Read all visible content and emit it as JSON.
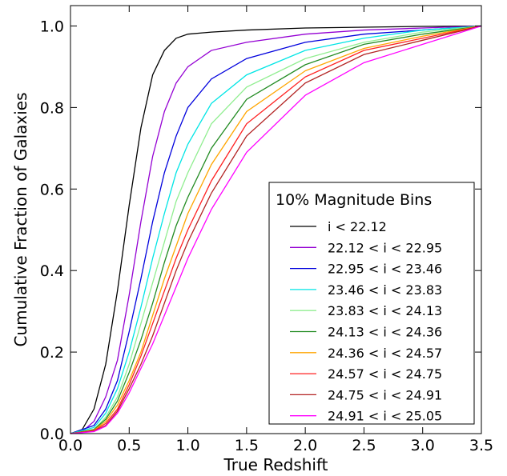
{
  "chart_data": {
    "type": "line",
    "title": "",
    "xlabel": "True Redshift",
    "ylabel": "Cumulative Fraction of Galaxies",
    "xlim": [
      0.0,
      3.5
    ],
    "ylim": [
      0.0,
      1.05
    ],
    "xticks": [
      "0.0",
      "0.5",
      "1.0",
      "1.5",
      "2.0",
      "2.5",
      "3.0",
      "3.5"
    ],
    "yticks": [
      "0.0",
      "0.2",
      "0.4",
      "0.6",
      "0.8",
      "1.0"
    ],
    "grid": false,
    "legend": {
      "title": "10% Magnitude Bins",
      "placement": "lower-right"
    },
    "series": [
      {
        "name": "i < 22.12",
        "color": "#000000",
        "points": [
          [
            0,
            0
          ],
          [
            0.1,
            0.01
          ],
          [
            0.2,
            0.06
          ],
          [
            0.3,
            0.17
          ],
          [
            0.4,
            0.35
          ],
          [
            0.5,
            0.56
          ],
          [
            0.6,
            0.75
          ],
          [
            0.7,
            0.88
          ],
          [
            0.8,
            0.94
          ],
          [
            0.9,
            0.97
          ],
          [
            1.0,
            0.98
          ],
          [
            1.2,
            0.985
          ],
          [
            1.5,
            0.99
          ],
          [
            2.0,
            0.995
          ],
          [
            2.5,
            0.997
          ],
          [
            3.0,
            0.999
          ],
          [
            3.5,
            1.0
          ]
        ]
      },
      {
        "name": "22.12 < i < 22.95",
        "color": "#9400d3",
        "points": [
          [
            0,
            0
          ],
          [
            0.1,
            0.005
          ],
          [
            0.2,
            0.03
          ],
          [
            0.3,
            0.09
          ],
          [
            0.4,
            0.18
          ],
          [
            0.5,
            0.34
          ],
          [
            0.6,
            0.52
          ],
          [
            0.7,
            0.68
          ],
          [
            0.8,
            0.79
          ],
          [
            0.9,
            0.86
          ],
          [
            1.0,
            0.9
          ],
          [
            1.2,
            0.94
          ],
          [
            1.5,
            0.96
          ],
          [
            2.0,
            0.98
          ],
          [
            2.5,
            0.99
          ],
          [
            3.0,
            0.995
          ],
          [
            3.5,
            1.0
          ]
        ]
      },
      {
        "name": "22.95 < i < 23.46",
        "color": "#0000dd",
        "points": [
          [
            0,
            0
          ],
          [
            0.2,
            0.02
          ],
          [
            0.3,
            0.06
          ],
          [
            0.4,
            0.13
          ],
          [
            0.5,
            0.25
          ],
          [
            0.6,
            0.38
          ],
          [
            0.7,
            0.52
          ],
          [
            0.8,
            0.64
          ],
          [
            0.9,
            0.73
          ],
          [
            1.0,
            0.8
          ],
          [
            1.2,
            0.87
          ],
          [
            1.5,
            0.92
          ],
          [
            2.0,
            0.96
          ],
          [
            2.5,
            0.98
          ],
          [
            3.0,
            0.99
          ],
          [
            3.5,
            1.0
          ]
        ]
      },
      {
        "name": "23.46 < i < 23.83",
        "color": "#00e5e5",
        "points": [
          [
            0,
            0
          ],
          [
            0.2,
            0.015
          ],
          [
            0.3,
            0.05
          ],
          [
            0.4,
            0.11
          ],
          [
            0.5,
            0.2
          ],
          [
            0.6,
            0.31
          ],
          [
            0.7,
            0.43
          ],
          [
            0.8,
            0.54
          ],
          [
            0.9,
            0.64
          ],
          [
            1.0,
            0.71
          ],
          [
            1.2,
            0.81
          ],
          [
            1.5,
            0.88
          ],
          [
            2.0,
            0.94
          ],
          [
            2.5,
            0.97
          ],
          [
            3.0,
            0.99
          ],
          [
            3.5,
            1.0
          ]
        ]
      },
      {
        "name": "23.83 < i < 24.13",
        "color": "#90ee90",
        "points": [
          [
            0,
            0
          ],
          [
            0.2,
            0.01
          ],
          [
            0.3,
            0.04
          ],
          [
            0.4,
            0.09
          ],
          [
            0.5,
            0.17
          ],
          [
            0.6,
            0.27
          ],
          [
            0.7,
            0.37
          ],
          [
            0.8,
            0.47
          ],
          [
            0.9,
            0.57
          ],
          [
            1.0,
            0.64
          ],
          [
            1.2,
            0.76
          ],
          [
            1.5,
            0.85
          ],
          [
            2.0,
            0.92
          ],
          [
            2.5,
            0.96
          ],
          [
            3.0,
            0.985
          ],
          [
            3.5,
            1.0
          ]
        ]
      },
      {
        "name": "24.13 < i < 24.36",
        "color": "#228b22",
        "points": [
          [
            0,
            0
          ],
          [
            0.2,
            0.01
          ],
          [
            0.3,
            0.035
          ],
          [
            0.4,
            0.08
          ],
          [
            0.5,
            0.15
          ],
          [
            0.6,
            0.23
          ],
          [
            0.7,
            0.32
          ],
          [
            0.8,
            0.42
          ],
          [
            0.9,
            0.51
          ],
          [
            1.0,
            0.58
          ],
          [
            1.2,
            0.7
          ],
          [
            1.5,
            0.82
          ],
          [
            2.0,
            0.905
          ],
          [
            2.5,
            0.955
          ],
          [
            3.0,
            0.98
          ],
          [
            3.5,
            1.0
          ]
        ]
      },
      {
        "name": "24.36 < i < 24.57",
        "color": "#ffa500",
        "points": [
          [
            0,
            0
          ],
          [
            0.2,
            0.008
          ],
          [
            0.3,
            0.03
          ],
          [
            0.4,
            0.07
          ],
          [
            0.5,
            0.13
          ],
          [
            0.6,
            0.2
          ],
          [
            0.7,
            0.29
          ],
          [
            0.8,
            0.38
          ],
          [
            0.9,
            0.46
          ],
          [
            1.0,
            0.54
          ],
          [
            1.2,
            0.66
          ],
          [
            1.5,
            0.79
          ],
          [
            2.0,
            0.89
          ],
          [
            2.5,
            0.945
          ],
          [
            3.0,
            0.975
          ],
          [
            3.5,
            1.0
          ]
        ]
      },
      {
        "name": "24.57 < i < 24.75",
        "color": "#ff2020",
        "points": [
          [
            0,
            0
          ],
          [
            0.2,
            0.007
          ],
          [
            0.3,
            0.025
          ],
          [
            0.4,
            0.06
          ],
          [
            0.5,
            0.12
          ],
          [
            0.6,
            0.19
          ],
          [
            0.7,
            0.27
          ],
          [
            0.8,
            0.35
          ],
          [
            0.9,
            0.43
          ],
          [
            1.0,
            0.5
          ],
          [
            1.2,
            0.62
          ],
          [
            1.5,
            0.76
          ],
          [
            2.0,
            0.875
          ],
          [
            2.5,
            0.94
          ],
          [
            3.0,
            0.97
          ],
          [
            3.5,
            1.0
          ]
        ]
      },
      {
        "name": "24.75 < i < 24.91",
        "color": "#b22222",
        "points": [
          [
            0,
            0
          ],
          [
            0.2,
            0.006
          ],
          [
            0.3,
            0.02
          ],
          [
            0.4,
            0.055
          ],
          [
            0.5,
            0.11
          ],
          [
            0.6,
            0.17
          ],
          [
            0.7,
            0.24
          ],
          [
            0.8,
            0.32
          ],
          [
            0.9,
            0.4
          ],
          [
            1.0,
            0.47
          ],
          [
            1.2,
            0.59
          ],
          [
            1.5,
            0.73
          ],
          [
            2.0,
            0.86
          ],
          [
            2.5,
            0.93
          ],
          [
            3.0,
            0.965
          ],
          [
            3.5,
            1.0
          ]
        ]
      },
      {
        "name": "24.91 < i < 25.05",
        "color": "#ff00ff",
        "points": [
          [
            0,
            0
          ],
          [
            0.2,
            0.005
          ],
          [
            0.3,
            0.018
          ],
          [
            0.4,
            0.05
          ],
          [
            0.5,
            0.1
          ],
          [
            0.6,
            0.16
          ],
          [
            0.7,
            0.22
          ],
          [
            0.8,
            0.29
          ],
          [
            0.9,
            0.36
          ],
          [
            1.0,
            0.43
          ],
          [
            1.2,
            0.55
          ],
          [
            1.5,
            0.69
          ],
          [
            2.0,
            0.83
          ],
          [
            2.5,
            0.91
          ],
          [
            3.0,
            0.955
          ],
          [
            3.5,
            1.0
          ]
        ]
      }
    ]
  }
}
